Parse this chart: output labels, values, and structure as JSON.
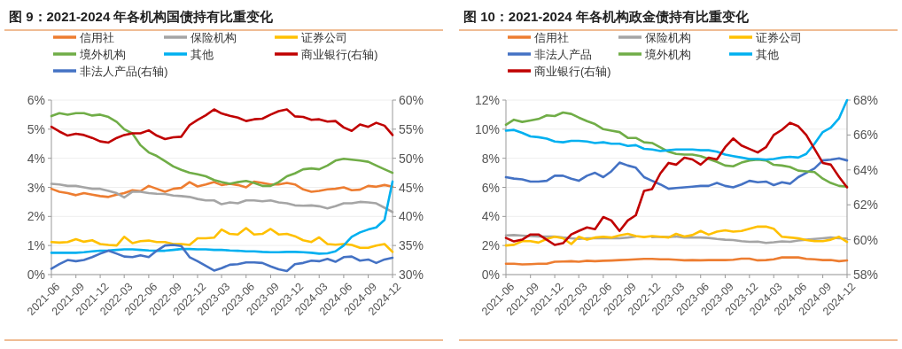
{
  "chart_data": [
    {
      "type": "line",
      "title": "图 9：2021-2024 年各机构国债持有比重变化",
      "legend": "top",
      "grid": "y",
      "marker": "none",
      "line_style": "solid",
      "x": [
        "2021-06",
        "2021-07",
        "2021-08",
        "2021-09",
        "2021-10",
        "2021-11",
        "2021-12",
        "2022-01",
        "2022-02",
        "2022-03",
        "2022-04",
        "2022-05",
        "2022-06",
        "2022-07",
        "2022-08",
        "2022-09",
        "2022-10",
        "2022-11",
        "2022-12",
        "2023-01",
        "2023-02",
        "2023-03",
        "2023-04",
        "2023-05",
        "2023-06",
        "2023-07",
        "2023-08",
        "2023-09",
        "2023-10",
        "2023-11",
        "2023-12",
        "2024-01",
        "2024-02",
        "2024-03",
        "2024-04",
        "2024-05",
        "2024-06",
        "2024-07",
        "2024-08",
        "2024-09",
        "2024-10",
        "2024-11",
        "2024-12"
      ],
      "xlim": [
        "2021-06",
        "2024-12"
      ],
      "xticks": [
        "2021-06",
        "2021-09",
        "2021-12",
        "2022-03",
        "2022-06",
        "2022-09",
        "2022-12",
        "2023-03",
        "2023-06",
        "2023-09",
        "2023-12",
        "2024-03",
        "2024-06",
        "2024-09",
        "2024-12"
      ],
      "ylim": [
        0,
        6
      ],
      "yticks": [
        {
          "value": 0,
          "label": "0%"
        },
        {
          "value": 1,
          "label": "1%"
        },
        {
          "value": 2,
          "label": "2%"
        },
        {
          "value": 3,
          "label": "3%"
        },
        {
          "value": 4,
          "label": "4%"
        },
        {
          "value": 5,
          "label": "5%"
        },
        {
          "value": 6,
          "label": "6%"
        }
      ],
      "y2lim": [
        30,
        60
      ],
      "y2ticks": [
        {
          "value": 30,
          "label": "30%"
        },
        {
          "value": 35,
          "label": "35%"
        },
        {
          "value": 40,
          "label": "40%"
        },
        {
          "value": 45,
          "label": "45%"
        },
        {
          "value": 50,
          "label": "50%"
        },
        {
          "value": 55,
          "label": "55%"
        },
        {
          "value": 60,
          "label": "60%"
        }
      ],
      "series": [
        {
          "name": "信用社",
          "color": "#ed7d31",
          "values": [
            2.95,
            2.85,
            2.8,
            2.73,
            2.8,
            2.75,
            2.7,
            2.67,
            2.75,
            2.8,
            2.9,
            2.87,
            3.05,
            2.95,
            2.85,
            2.95,
            2.98,
            3.18,
            3.03,
            3.1,
            3.18,
            3.08,
            3.12,
            3.08,
            3.0,
            3.2,
            3.15,
            3.1,
            3.1,
            3.15,
            3.1,
            2.93,
            2.85,
            2.88,
            2.93,
            2.95,
            3.0,
            2.9,
            2.92,
            3.05,
            3.02,
            3.08,
            3.02
          ]
        },
        {
          "name": "保险机构",
          "color": "#a5a5a5",
          "values": [
            3.12,
            3.1,
            3.05,
            3.05,
            3.0,
            2.95,
            2.95,
            2.88,
            2.8,
            2.65,
            2.85,
            2.85,
            2.8,
            2.78,
            2.77,
            2.72,
            2.7,
            2.67,
            2.6,
            2.55,
            2.55,
            2.42,
            2.48,
            2.45,
            2.55,
            2.55,
            2.52,
            2.55,
            2.48,
            2.45,
            2.38,
            2.37,
            2.38,
            2.35,
            2.28,
            2.35,
            2.45,
            2.45,
            2.5,
            2.48,
            2.45,
            2.3,
            2.15
          ]
        },
        {
          "name": "证券公司",
          "color": "#ffc000",
          "values": [
            1.12,
            1.1,
            1.12,
            1.22,
            1.13,
            1.18,
            1.05,
            1.02,
            1.0,
            1.3,
            1.08,
            1.15,
            1.17,
            1.12,
            1.12,
            1.05,
            1.05,
            1.02,
            1.25,
            1.25,
            1.27,
            1.55,
            1.4,
            1.38,
            1.6,
            1.38,
            1.4,
            1.57,
            1.38,
            1.4,
            1.32,
            1.18,
            1.12,
            1.28,
            1.05,
            1.03,
            1.05,
            1.02,
            0.92,
            0.92,
            1.0,
            1.05,
            0.78
          ]
        },
        {
          "name": "境外机构",
          "color": "#70ad47",
          "values": [
            5.45,
            5.55,
            5.5,
            5.55,
            5.55,
            5.47,
            5.5,
            5.42,
            5.25,
            5.0,
            4.85,
            4.45,
            4.2,
            4.08,
            3.9,
            3.72,
            3.6,
            3.5,
            3.45,
            3.38,
            3.25,
            3.18,
            3.12,
            3.18,
            3.22,
            3.15,
            3.05,
            3.05,
            3.18,
            3.38,
            3.48,
            3.62,
            3.65,
            3.62,
            3.75,
            3.92,
            3.98,
            3.95,
            3.92,
            3.88,
            3.75,
            3.62,
            3.5
          ]
        },
        {
          "name": "其他",
          "color": "#00b0f0",
          "values": [
            0.75,
            0.75,
            0.75,
            0.75,
            0.77,
            0.8,
            0.82,
            0.83,
            0.85,
            0.87,
            0.87,
            0.85,
            0.83,
            0.82,
            0.82,
            0.85,
            0.88,
            0.88,
            0.87,
            0.87,
            0.85,
            0.85,
            0.83,
            0.82,
            0.8,
            0.8,
            0.78,
            0.77,
            0.77,
            0.78,
            0.78,
            0.77,
            0.75,
            0.72,
            0.73,
            0.8,
            1.0,
            1.3,
            1.45,
            1.55,
            1.62,
            1.88,
            3.2
          ]
        },
        {
          "name": "商业银行(右轴)",
          "color": "#c00000",
          "axis": "y2",
          "values": [
            55.4,
            54.6,
            53.9,
            54.2,
            54.0,
            53.5,
            52.9,
            52.7,
            53.5,
            54.0,
            54.3,
            54.3,
            54.8,
            53.9,
            53.3,
            53.6,
            53.7,
            55.7,
            56.6,
            57.4,
            58.4,
            57.7,
            57.3,
            57.0,
            56.4,
            56.7,
            56.8,
            57.5,
            58.1,
            58.4,
            57.2,
            57.1,
            56.6,
            56.7,
            56.3,
            56.4,
            55.3,
            54.7,
            55.8,
            55.4,
            56.1,
            55.6,
            54.0
          ]
        },
        {
          "name": "非法人产品(右轴)",
          "color": "#4472c4",
          "axis": "y2",
          "values": [
            31.0,
            31.8,
            32.5,
            32.3,
            32.5,
            33.0,
            33.6,
            34.1,
            33.6,
            33.1,
            33.0,
            33.3,
            33.0,
            34.1,
            35.0,
            35.1,
            34.9,
            33.0,
            32.3,
            31.5,
            30.7,
            31.1,
            31.7,
            31.8,
            32.1,
            32.1,
            32.0,
            31.4,
            30.9,
            30.6,
            31.8,
            32.0,
            32.4,
            32.3,
            32.7,
            32.2,
            33.0,
            33.1,
            32.4,
            32.6,
            32.0,
            32.6,
            32.9
          ]
        }
      ]
    },
    {
      "type": "line",
      "title": "图 10：2021-2024 年各机构政金债持有比重变化",
      "legend": "top",
      "grid": "y",
      "marker": "none",
      "line_style": "solid",
      "x": [
        "2021-06",
        "2021-07",
        "2021-08",
        "2021-09",
        "2021-10",
        "2021-11",
        "2021-12",
        "2022-01",
        "2022-02",
        "2022-03",
        "2022-04",
        "2022-05",
        "2022-06",
        "2022-07",
        "2022-08",
        "2022-09",
        "2022-10",
        "2022-11",
        "2022-12",
        "2023-01",
        "2023-02",
        "2023-03",
        "2023-04",
        "2023-05",
        "2023-06",
        "2023-07",
        "2023-08",
        "2023-09",
        "2023-10",
        "2023-11",
        "2023-12",
        "2024-01",
        "2024-02",
        "2024-03",
        "2024-04",
        "2024-05",
        "2024-06",
        "2024-07",
        "2024-08",
        "2024-09",
        "2024-10",
        "2024-11",
        "2024-12"
      ],
      "xlim": [
        "2021-06",
        "2024-12"
      ],
      "xticks": [
        "2021-06",
        "2021-09",
        "2021-12",
        "2022-03",
        "2022-06",
        "2022-09",
        "2022-12",
        "2023-03",
        "2023-06",
        "2023-09",
        "2023-12",
        "2024-03",
        "2024-06",
        "2024-09",
        "2024-12"
      ],
      "ylim": [
        0,
        12
      ],
      "yticks": [
        {
          "value": 0,
          "label": "0%"
        },
        {
          "value": 2,
          "label": "2%"
        },
        {
          "value": 4,
          "label": "4%"
        },
        {
          "value": 6,
          "label": "6%"
        },
        {
          "value": 8,
          "label": "8%"
        },
        {
          "value": 10,
          "label": "10%"
        },
        {
          "value": 12,
          "label": "12%"
        }
      ],
      "y2lim": [
        58,
        68
      ],
      "y2ticks": [
        {
          "value": 58,
          "label": "58%"
        },
        {
          "value": 60,
          "label": "60%"
        },
        {
          "value": 62,
          "label": "62%"
        },
        {
          "value": 64,
          "label": "64%"
        },
        {
          "value": 66,
          "label": "66%"
        },
        {
          "value": 68,
          "label": "68%"
        }
      ],
      "series": [
        {
          "name": "信用社",
          "color": "#ed7d31",
          "values": [
            0.75,
            0.75,
            0.7,
            0.72,
            0.75,
            0.75,
            0.88,
            0.9,
            0.92,
            0.88,
            0.95,
            0.92,
            0.95,
            0.97,
            1.0,
            1.02,
            1.05,
            1.08,
            1.08,
            1.05,
            1.05,
            1.02,
            0.98,
            1.0,
            0.98,
            1.0,
            1.0,
            1.0,
            1.02,
            1.1,
            1.1,
            0.98,
            1.0,
            1.05,
            1.18,
            1.18,
            1.18,
            1.08,
            1.05,
            1.0,
            1.0,
            0.92,
            0.97
          ]
        },
        {
          "name": "保险机构",
          "color": "#a5a5a5",
          "values": [
            2.7,
            2.72,
            2.68,
            2.65,
            2.62,
            2.62,
            2.62,
            2.55,
            2.5,
            2.45,
            2.5,
            2.5,
            2.52,
            2.5,
            2.5,
            2.55,
            2.62,
            null,
            2.58,
            2.6,
            2.58,
            2.62,
            2.55,
            2.55,
            2.55,
            2.52,
            2.45,
            2.4,
            2.38,
            2.3,
            2.25,
            2.27,
            2.18,
            2.22,
            2.28,
            2.25,
            2.35,
            2.4,
            2.45,
            2.5,
            2.55,
            2.5,
            2.48
          ]
        },
        {
          "name": "证券公司",
          "color": "#ffc000",
          "values": [
            2.0,
            2.05,
            2.3,
            2.3,
            2.2,
            2.45,
            2.6,
            2.5,
            2.1,
            2.6,
            2.4,
            2.55,
            2.6,
            2.55,
            2.7,
            2.8,
            2.65,
            2.58,
            2.65,
            2.6,
            2.55,
            2.8,
            2.62,
            2.72,
            3.0,
            2.75,
            2.95,
            3.05,
            2.95,
            3.0,
            3.15,
            3.3,
            3.3,
            3.15,
            2.6,
            2.55,
            2.5,
            2.38,
            2.3,
            2.3,
            2.4,
            2.6,
            2.25
          ]
        },
        {
          "name": "非法人产品",
          "color": "#4472c4",
          "values": [
            6.7,
            6.6,
            6.55,
            6.4,
            6.4,
            6.45,
            6.8,
            6.8,
            6.6,
            6.45,
            6.8,
            7.0,
            6.7,
            7.1,
            7.7,
            7.5,
            7.35,
            6.7,
            6.45,
            6.2,
            5.9,
            5.95,
            6.0,
            6.05,
            6.1,
            6.1,
            6.3,
            6.1,
            6.0,
            6.2,
            6.45,
            6.35,
            6.4,
            6.15,
            6.35,
            6.25,
            6.7,
            7.0,
            7.3,
            7.85,
            7.9,
            8.0,
            7.85
          ]
        },
        {
          "name": "境外机构",
          "color": "#70ad47",
          "values": [
            10.3,
            10.65,
            10.5,
            10.6,
            10.7,
            10.95,
            10.9,
            11.15,
            11.05,
            10.8,
            10.55,
            10.35,
            10.0,
            9.9,
            9.8,
            9.4,
            9.4,
            9.1,
            9.05,
            8.75,
            8.45,
            8.3,
            8.25,
            8.25,
            8.15,
            7.95,
            7.75,
            7.5,
            7.45,
            7.7,
            7.85,
            7.9,
            7.85,
            7.55,
            7.5,
            7.4,
            7.15,
            7.1,
            7.05,
            6.6,
            6.3,
            6.1,
            6.05
          ]
        },
        {
          "name": "其他",
          "color": "#00b0f0",
          "values": [
            9.9,
            9.95,
            9.75,
            9.5,
            9.45,
            9.35,
            9.15,
            9.1,
            9.2,
            9.2,
            9.15,
            9.05,
            9.1,
            9.0,
            9.0,
            8.85,
            8.9,
            8.65,
            8.6,
            8.5,
            8.55,
            8.6,
            8.6,
            8.6,
            8.55,
            8.55,
            8.45,
            8.25,
            8.15,
            8.05,
            7.95,
            7.95,
            7.9,
            7.95,
            8.05,
            8.1,
            8.05,
            8.3,
            9.0,
            9.8,
            10.1,
            10.75,
            12.0
          ]
        },
        {
          "name": "商业银行(右轴)",
          "color": "#c00000",
          "axis": "y2",
          "values": [
            60.1,
            59.9,
            60.0,
            60.3,
            60.3,
            60.0,
            59.7,
            59.8,
            60.3,
            60.5,
            60.7,
            60.6,
            61.3,
            61.1,
            60.5,
            61.1,
            61.4,
            62.8,
            62.9,
            63.8,
            64.4,
            64.3,
            64.7,
            64.6,
            64.3,
            64.7,
            64.6,
            65.3,
            65.8,
            65.4,
            65.2,
            65.0,
            65.3,
            66.0,
            66.3,
            66.7,
            66.5,
            66.0,
            65.2,
            64.4,
            64.3,
            63.6,
            63.0
          ]
        }
      ]
    }
  ]
}
